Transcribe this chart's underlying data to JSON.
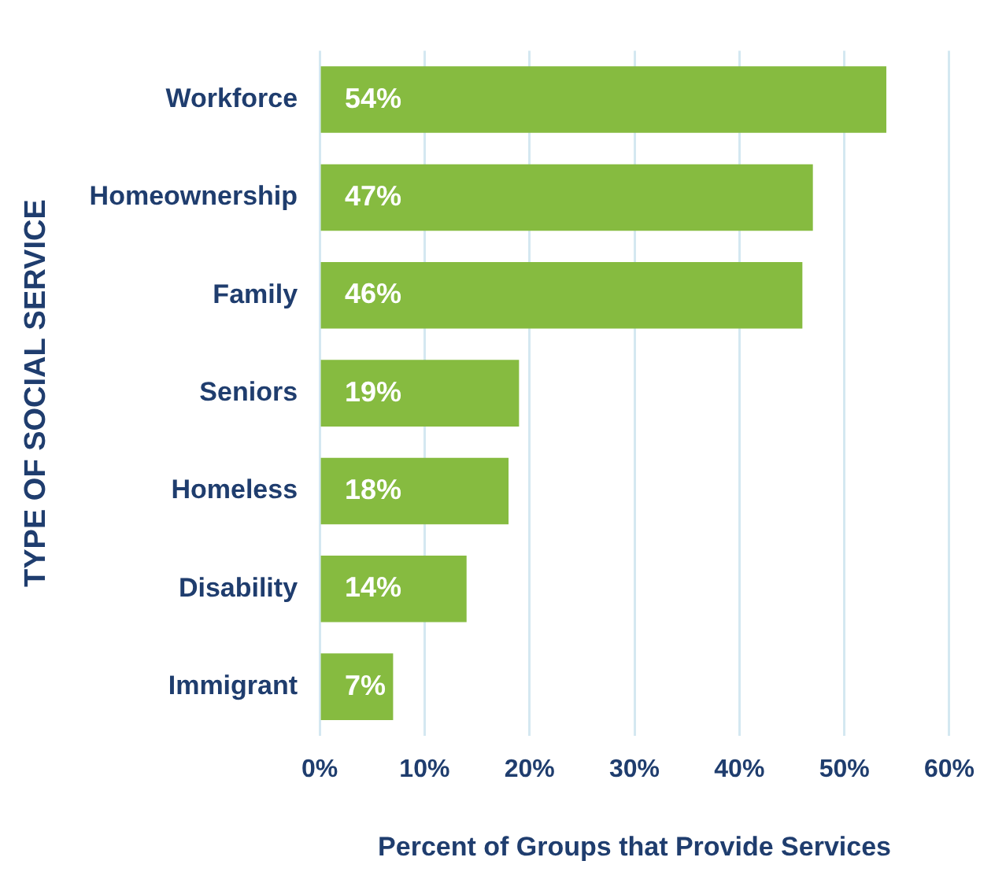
{
  "chart_data": {
    "type": "bar",
    "orientation": "horizontal",
    "xlabel": "Percent of Groups that Provide Services",
    "ylabel": "TYPE OF SOCIAL SERVICE",
    "categories": [
      "Workforce",
      "Homeownership",
      "Family",
      "Seniors",
      "Homeless",
      "Disability",
      "Immigrant"
    ],
    "values": [
      54,
      47,
      46,
      19,
      18,
      14,
      7
    ],
    "value_labels": [
      "54%",
      "47%",
      "46%",
      "19%",
      "18%",
      "14%",
      "7%"
    ],
    "color": "#86bb40",
    "xlim": [
      0,
      60
    ],
    "xticks": [
      {
        "value": 0,
        "label": "0%"
      },
      {
        "value": 10,
        "label": "10%"
      },
      {
        "value": 20,
        "label": "20%"
      },
      {
        "value": 30,
        "label": "30%"
      },
      {
        "value": 40,
        "label": "40%"
      },
      {
        "value": 50,
        "label": "50%"
      },
      {
        "value": 60,
        "label": "60%"
      }
    ],
    "grid": "x"
  }
}
